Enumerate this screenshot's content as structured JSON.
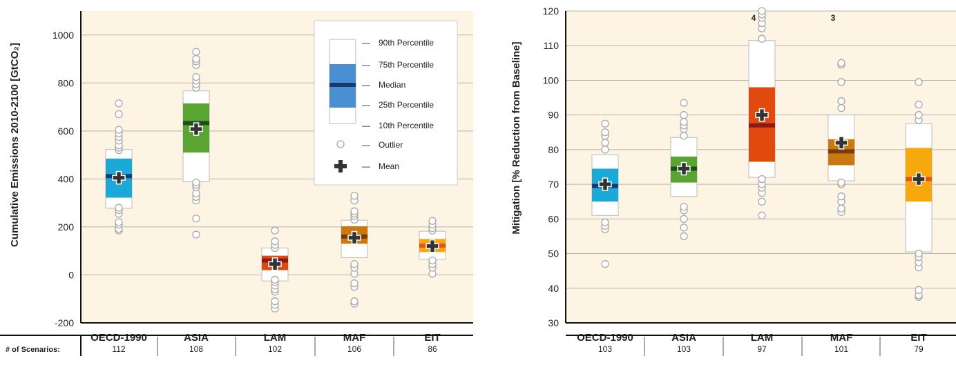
{
  "chart_data": [
    {
      "type": "box",
      "ylabel": "Cumulative Emissions 2010-2100 [GtCO₂]",
      "ylim": [
        -200,
        1100
      ],
      "yticks": [
        -200,
        0,
        200,
        400,
        600,
        800,
        1000
      ],
      "grid": true,
      "categories": [
        "OECD-1990",
        "ASIA",
        "LAM",
        "MAF",
        "EIT"
      ],
      "colors": [
        "#1ba9d8",
        "#5aa532",
        "#e04a0f",
        "#c9790f",
        "#f7a80c"
      ],
      "median_colors": [
        "#1b3a6b",
        "#1e4d1e",
        "#8b1a1a",
        "#7a3a0a",
        "#e8521a"
      ],
      "boxes": [
        {
          "p10": 278,
          "p25": 322,
          "median": 412,
          "p75": 485,
          "p90": 523,
          "mean": 405,
          "outliers": [
            185,
            192,
            210,
            220,
            255,
            270,
            280,
            520,
            530,
            540,
            560,
            575,
            590,
            605,
            670,
            715
          ]
        },
        {
          "p10": 388,
          "p25": 510,
          "median": 633,
          "p75": 715,
          "p90": 767,
          "mean": 608,
          "outliers": [
            168,
            235,
            310,
            325,
            340,
            365,
            375,
            385,
            780,
            795,
            810,
            825,
            875,
            890,
            900,
            930
          ]
        },
        {
          "p10": -25,
          "p25": 20,
          "median": 60,
          "p75": 80,
          "p90": 112,
          "mean": 45,
          "outliers": [
            -140,
            -125,
            -110,
            -70,
            -60,
            -45,
            -30,
            -20,
            112,
            125,
            140,
            185
          ]
        },
        {
          "p10": 72,
          "p25": 130,
          "median": 160,
          "p75": 203,
          "p90": 228,
          "mean": 155,
          "outliers": [
            -120,
            -110,
            -50,
            -35,
            5,
            30,
            45,
            230,
            245,
            255,
            265,
            310,
            330
          ]
        },
        {
          "p10": 65,
          "p25": 95,
          "median": 122,
          "p75": 150,
          "p90": 182,
          "mean": 120,
          "outliers": [
            5,
            30,
            45,
            60,
            185,
            195,
            210,
            225
          ]
        }
      ],
      "count_label": "# of Scenarios:",
      "counts": [
        112,
        108,
        102,
        106,
        86
      ]
    },
    {
      "type": "box",
      "ylabel": "Mitigation [% Reduction from Baseline]",
      "ylim": [
        30,
        120
      ],
      "yticks": [
        30,
        40,
        50,
        60,
        70,
        80,
        90,
        100,
        110,
        120
      ],
      "grid": true,
      "categories": [
        "OECD-1990",
        "ASIA",
        "LAM",
        "MAF",
        "EIT"
      ],
      "colors": [
        "#1ba9d8",
        "#5aa532",
        "#e04a0f",
        "#c9790f",
        "#f7a80c"
      ],
      "median_colors": [
        "#1b3a6b",
        "#1e4d1e",
        "#8b1a1a",
        "#7a3a0a",
        "#e8521a"
      ],
      "boxes": [
        {
          "p10": 61,
          "p25": 65,
          "median": 69.5,
          "p75": 74.5,
          "p90": 78.5,
          "mean": 70,
          "outliers": [
            47,
            57,
            58,
            59,
            80,
            82,
            84,
            85,
            87.5
          ]
        },
        {
          "p10": 66.5,
          "p25": 70.5,
          "median": 74.5,
          "p75": 78,
          "p90": 83.5,
          "mean": 74.5,
          "outliers": [
            55,
            57.5,
            60,
            62.5,
            63.5,
            84,
            86,
            87,
            88,
            90,
            93.5
          ]
        },
        {
          "p10": 72,
          "p25": 76.5,
          "median": 87,
          "p75": 98,
          "p90": 111.5,
          "mean": 90,
          "outliers": [
            61,
            65,
            67.5,
            69,
            70,
            71.5,
            112,
            115,
            116.5,
            118,
            119,
            120
          ]
        },
        {
          "p10": 71,
          "p25": 75.5,
          "median": 79.5,
          "p75": 83,
          "p90": 90,
          "mean": 82,
          "outliers": [
            62,
            63,
            65,
            66.5,
            70,
            70.5,
            92,
            94,
            99.5,
            104.5,
            105
          ]
        },
        {
          "p10": 50.5,
          "p25": 65,
          "median": 71.5,
          "p75": 80.5,
          "p90": 87.5,
          "mean": 71.5,
          "outliers": [
            37.5,
            38,
            39.5,
            46,
            47.5,
            49,
            50,
            88.5,
            90,
            93,
            99.5
          ]
        }
      ],
      "annotations": [
        {
          "category": "LAM",
          "text": "4"
        },
        {
          "category": "MAF",
          "text": "3"
        }
      ],
      "counts": [
        103,
        103,
        97,
        101,
        79
      ]
    }
  ],
  "legend": {
    "items": [
      "90th Percentile",
      "75th Percentile",
      "Median",
      "25th Percentile",
      "10th Percentile",
      "Outlier",
      "Mean"
    ],
    "dash": "—"
  }
}
